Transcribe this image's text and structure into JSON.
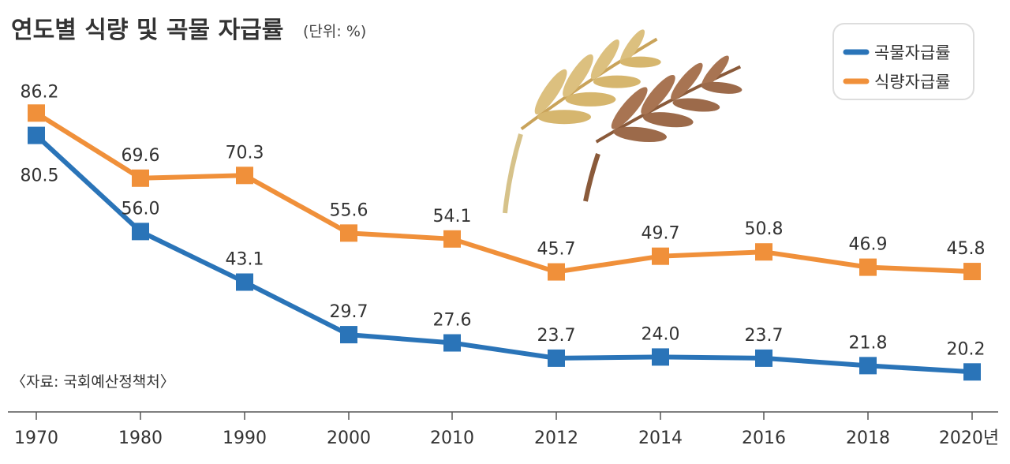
{
  "chart_data": {
    "type": "line",
    "title": "연도별 식량 및 곡물 자급률",
    "unit_note": "(단위: %)",
    "source": "〈자료: 국회예산정책처〉",
    "categories": [
      "1970",
      "1980",
      "1990",
      "2000",
      "2010",
      "2012",
      "2014",
      "2016",
      "2018",
      "2020년"
    ],
    "series": [
      {
        "name": "곡물자급률",
        "color": "#2a74b8",
        "values": [
          80.5,
          56.0,
          43.1,
          29.7,
          27.6,
          23.7,
          24.0,
          23.7,
          21.8,
          20.2
        ],
        "labels": [
          "80.5",
          "56.0",
          "43.1",
          "29.7",
          "27.6",
          "23.7",
          "24.0",
          "23.7",
          "21.8",
          "20.2"
        ]
      },
      {
        "name": "식량자급률",
        "color": "#f0903a",
        "values": [
          86.2,
          69.6,
          70.3,
          55.6,
          54.1,
          45.7,
          49.7,
          50.8,
          46.9,
          45.8
        ],
        "labels": [
          "86.2",
          "69.6",
          "70.3",
          "55.6",
          "54.1",
          "45.7",
          "49.7",
          "50.8",
          "46.9",
          "45.8"
        ]
      }
    ],
    "legend_position": "top-right",
    "grid": false,
    "illustration": "wheat-ears-icon"
  }
}
